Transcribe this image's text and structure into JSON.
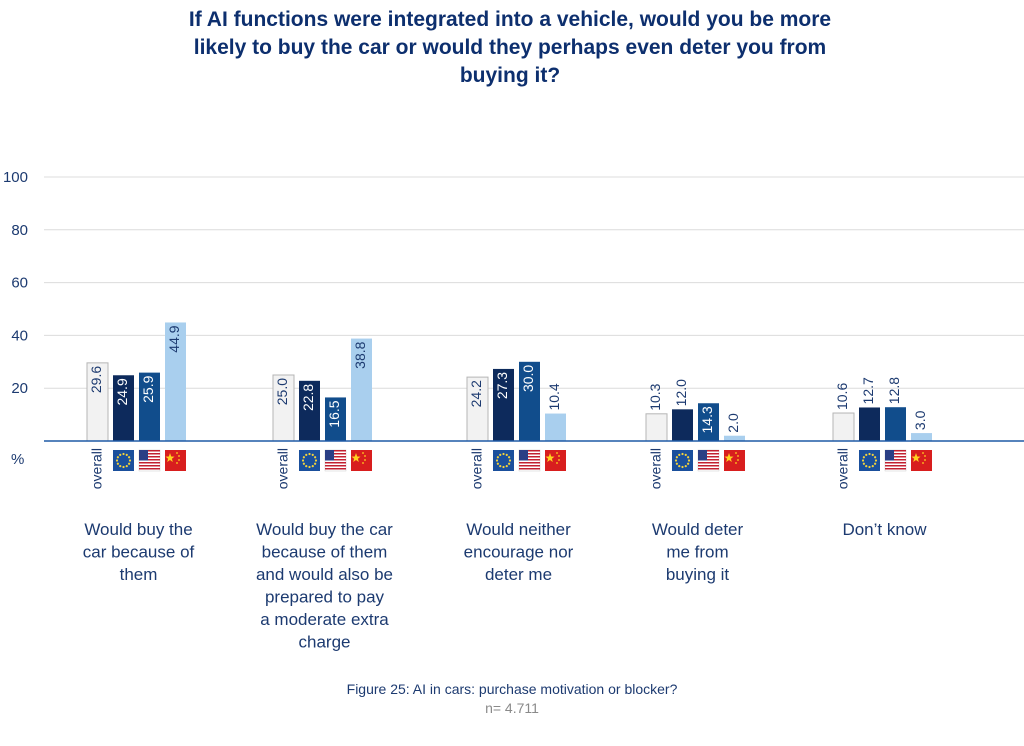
{
  "title": "If AI functions were integrated into a vehicle, would you be more likely to buy the car or would they perhaps even deter you from buying it?",
  "caption": "Figure 25: AI in cars: purchase motivation or blocker?",
  "sample_size": "n= 4.711",
  "colors": {
    "overall": "#f2f2f2",
    "eu": "#0d2a5c",
    "us": "#114d8c",
    "cn": "#a9cfee",
    "axis": "#1f5aa6",
    "title": "#0d2f6e"
  },
  "chart_data": {
    "type": "bar",
    "title": "If AI functions were integrated into a vehicle, would you be more likely to buy the car or would they perhaps even deter you from buying it?",
    "ylabel": "%",
    "ylim": [
      0,
      100
    ],
    "yticks": [
      20,
      40,
      60,
      80,
      100
    ],
    "grid": true,
    "categories": [
      "Would buy the car because of them",
      "Would buy the car because of them and would also be prepared to pay a moderate extra charge",
      "Would neither encourage nor deter me",
      "Would deter me from buying it",
      "Don’t know"
    ],
    "category_lines": [
      [
        "Would buy the",
        "car because of",
        "them"
      ],
      [
        "Would buy the car",
        "because of them",
        "and would also be",
        "prepared to pay",
        "a moderate extra",
        "charge"
      ],
      [
        "Would neither",
        "encourage nor",
        "deter me"
      ],
      [
        "Would deter",
        "me from",
        "buying it"
      ],
      [
        "Don’t know"
      ]
    ],
    "series": [
      {
        "name": "overall",
        "icon": "text-label",
        "values": [
          29.6,
          25.0,
          24.2,
          10.3,
          10.6
        ]
      },
      {
        "name": "",
        "icon": "eu-flag-icon",
        "values": [
          24.9,
          22.8,
          27.3,
          12.0,
          12.7
        ]
      },
      {
        "name": "",
        "icon": "us-flag-icon",
        "values": [
          25.9,
          16.5,
          30.0,
          14.3,
          12.8
        ]
      },
      {
        "name": "",
        "icon": "china-flag-icon",
        "values": [
          44.9,
          38.8,
          10.4,
          2.0,
          3.0
        ]
      }
    ]
  }
}
